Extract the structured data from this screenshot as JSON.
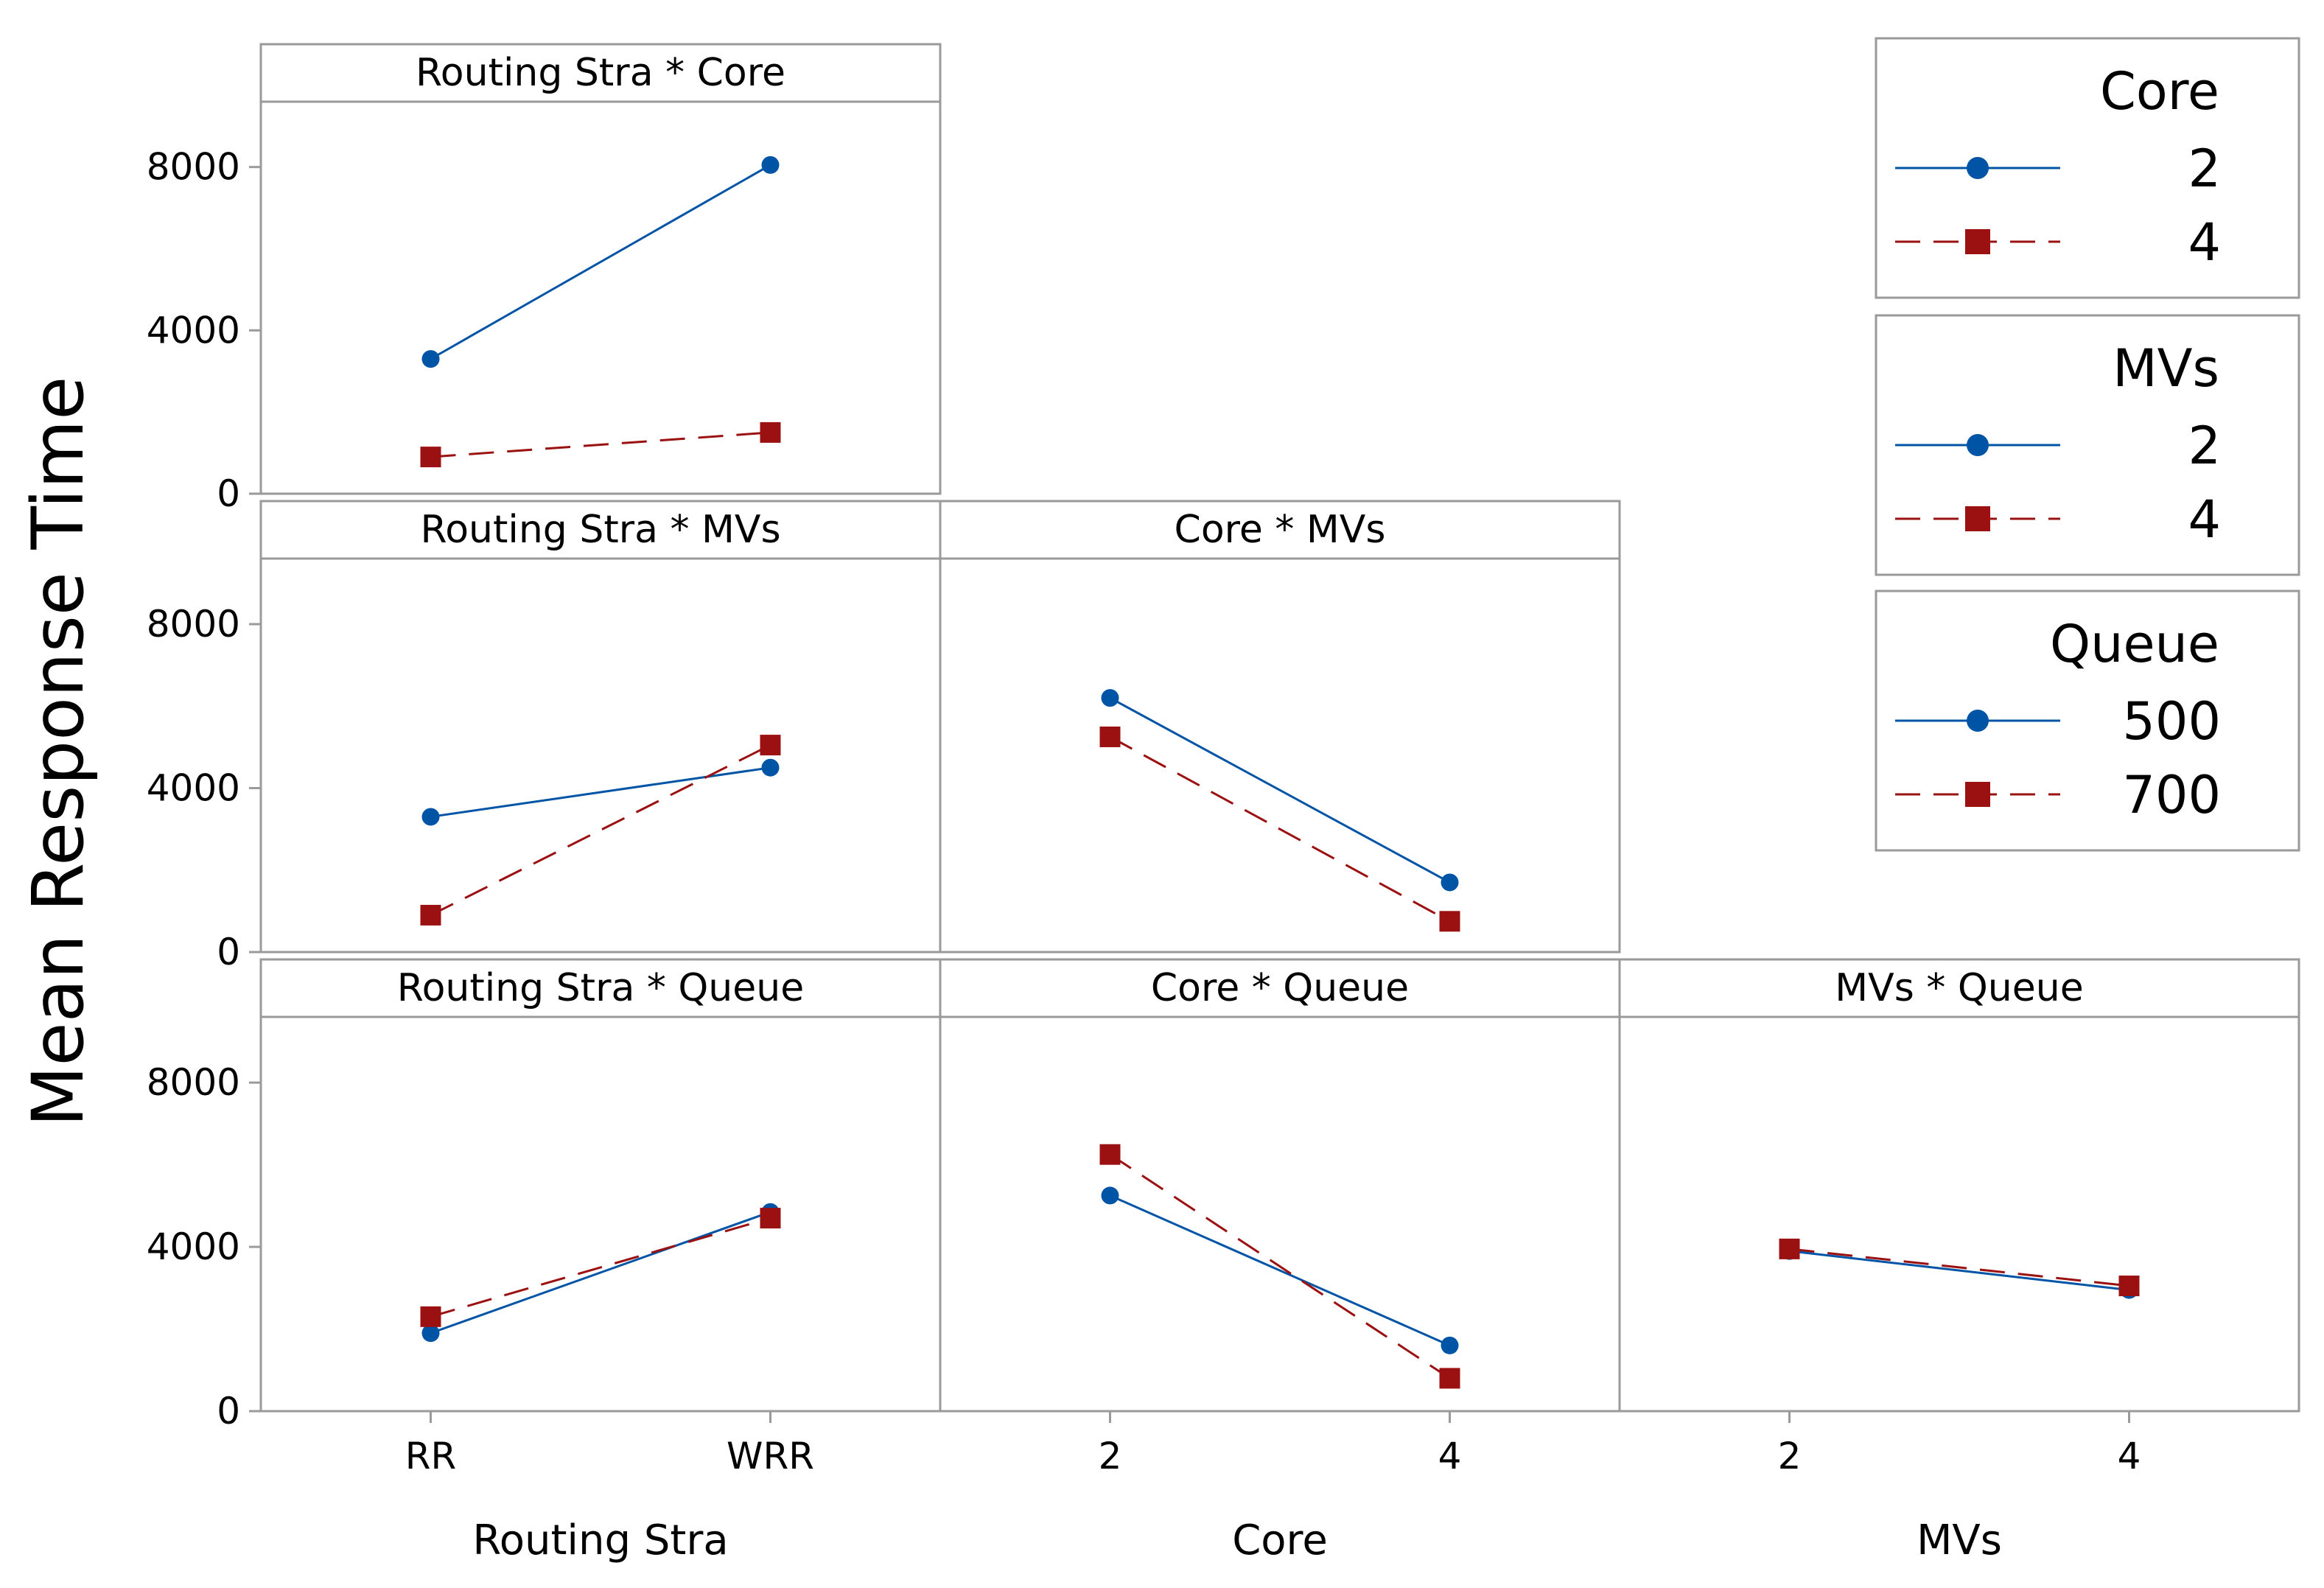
{
  "chart_data": {
    "type": "line",
    "ylabel": "Mean Response Time",
    "yticks": [
      0,
      4000,
      8000
    ],
    "ylim": [
      0,
      9600
    ],
    "colors": {
      "level1": "#0054a6",
      "level2": "#9b1111"
    },
    "grid": false,
    "legend_placement": "right",
    "factors": [
      {
        "name": "Routing Stra",
        "levels": [
          "RR",
          "WRR"
        ]
      },
      {
        "name": "Core",
        "levels": [
          "2",
          "4"
        ]
      },
      {
        "name": "MVs",
        "levels": [
          "2",
          "4"
        ]
      },
      {
        "name": "Queue",
        "levels": [
          "500",
          "700"
        ]
      }
    ],
    "legends": [
      {
        "title": "Core",
        "entries": [
          "2",
          "4"
        ]
      },
      {
        "title": "MVs",
        "entries": [
          "2",
          "4"
        ]
      },
      {
        "title": "Queue",
        "entries": [
          "500",
          "700"
        ]
      }
    ],
    "panels": [
      {
        "title": "Routing Stra * Core",
        "row": 0,
        "col": 0,
        "x": [
          "RR",
          "WRR"
        ],
        "series": [
          {
            "name": "2",
            "values": [
              3300,
              8050
            ]
          },
          {
            "name": "4",
            "values": [
              900,
              1500
            ]
          }
        ]
      },
      {
        "title": "Routing Stra * MVs",
        "row": 1,
        "col": 0,
        "x": [
          "RR",
          "WRR"
        ],
        "series": [
          {
            "name": "2",
            "values": [
              3300,
              4500
            ]
          },
          {
            "name": "4",
            "values": [
              900,
              5050
            ]
          }
        ]
      },
      {
        "title": "Core * MVs",
        "row": 1,
        "col": 1,
        "x": [
          "2",
          "4"
        ],
        "series": [
          {
            "name": "2",
            "values": [
              6200,
              1700
            ]
          },
          {
            "name": "4",
            "values": [
              5250,
              750
            ]
          }
        ]
      },
      {
        "title": "Routing Stra * Queue",
        "row": 2,
        "col": 0,
        "x": [
          "RR",
          "WRR"
        ],
        "series": [
          {
            "name": "500",
            "values": [
              1900,
              4850
            ]
          },
          {
            "name": "700",
            "values": [
              2300,
              4700
            ]
          }
        ]
      },
      {
        "title": "Core * Queue",
        "row": 2,
        "col": 1,
        "x": [
          "2",
          "4"
        ],
        "series": [
          {
            "name": "500",
            "values": [
              5250,
              1600
            ]
          },
          {
            "name": "700",
            "values": [
              6250,
              800
            ]
          }
        ]
      },
      {
        "title": "MVs * Queue",
        "row": 2,
        "col": 2,
        "x": [
          "2",
          "4"
        ],
        "series": [
          {
            "name": "500",
            "values": [
              3900,
              2950
            ]
          },
          {
            "name": "700",
            "values": [
              3950,
              3050
            ]
          }
        ]
      }
    ],
    "xaxes": [
      {
        "col": 0,
        "title": "Routing Stra",
        "ticks": [
          "RR",
          "WRR"
        ]
      },
      {
        "col": 1,
        "title": "Core",
        "ticks": [
          "2",
          "4"
        ]
      },
      {
        "col": 2,
        "title": "MVs",
        "ticks": [
          "2",
          "4"
        ]
      }
    ]
  }
}
